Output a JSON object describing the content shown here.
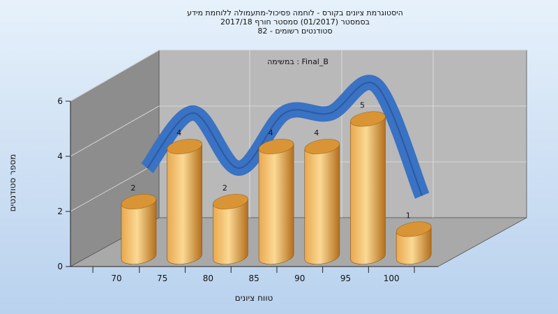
{
  "chart_data": {
    "type": "bar",
    "title_lines": [
      "היסטוגרמת ציונים בקורס - לוחמה פסיכול-מתעמולה ללוחמת מידע",
      "בסמסטר  (01/2017)  סמסטר חורף  2017/18",
      "סטודנטים רשומים - 82"
    ],
    "annotation": "במשימה : Final_B",
    "xlabel": "טווח ציונים",
    "ylabel": "מספר סטודנטים",
    "categories": [
      "70",
      "75",
      "80",
      "85",
      "90",
      "95",
      "100"
    ],
    "ylim": [
      0,
      6
    ],
    "yticks": [
      0,
      2,
      4,
      6
    ],
    "series": [
      {
        "values": [
          2,
          4,
          2,
          4,
          4,
          5,
          1
        ]
      }
    ],
    "grid": true,
    "colors": {
      "bar_light": "#fbd994",
      "bar_mid": "#e8a84e",
      "bar_dark": "#b36f1c",
      "bar_top": "#d99535",
      "ribbon": "#3a72c4",
      "ribbon_dark": "#2c5aa0",
      "back_wall": "#b9b9b9",
      "left_wall": "#8d8d8d",
      "floor": "#a9a9a9"
    }
  }
}
